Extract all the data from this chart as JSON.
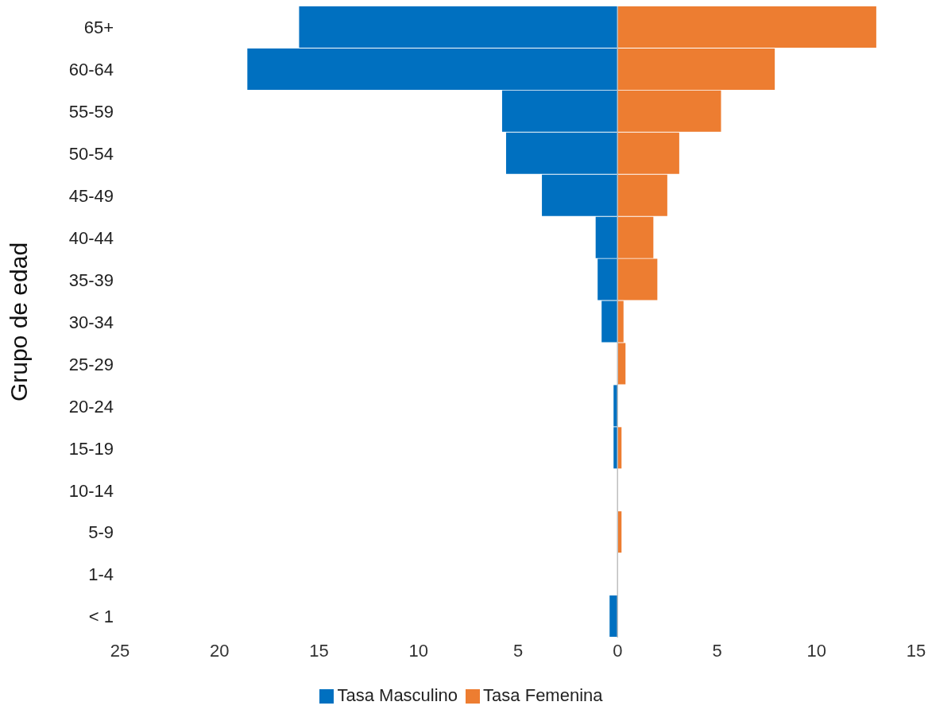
{
  "chart_data": {
    "type": "bar",
    "orientation": "horizontal",
    "stacked": true,
    "ylabel": "Grupo de edad",
    "categories": [
      "65+",
      "60-64",
      "55-59",
      "50-54",
      "45-49",
      "40-44",
      "35-39",
      "30-34",
      "25-29",
      "20-24",
      "15-19",
      "10-14",
      "5-9",
      "1-4",
      "< 1"
    ],
    "series": [
      {
        "name": "Tasa Masculino",
        "color": "#0070c0",
        "values": [
          -16.0,
          -18.6,
          -5.8,
          -5.6,
          -3.8,
          -1.1,
          -1.0,
          -0.8,
          0,
          -0.2,
          -0.2,
          0,
          0,
          0,
          -0.4
        ]
      },
      {
        "name": "Tasa Femenina",
        "color": "#ed7d31",
        "values": [
          13.0,
          7.9,
          5.2,
          3.1,
          2.5,
          1.8,
          2.0,
          0.3,
          0.4,
          0,
          0.2,
          0,
          0.2,
          0,
          0
        ]
      }
    ],
    "xlim": [
      -25,
      15
    ],
    "xticks": [
      {
        "value": -25,
        "label": "25"
      },
      {
        "value": -20,
        "label": "20"
      },
      {
        "value": -15,
        "label": "15"
      },
      {
        "value": -10,
        "label": "10"
      },
      {
        "value": -5,
        "label": "5"
      },
      0,
      5,
      10,
      15
    ],
    "ref_lines": [
      {
        "axis": "x",
        "value": 0,
        "color": "#bfbfbf"
      }
    ],
    "grid": false,
    "legend": "bottom"
  }
}
